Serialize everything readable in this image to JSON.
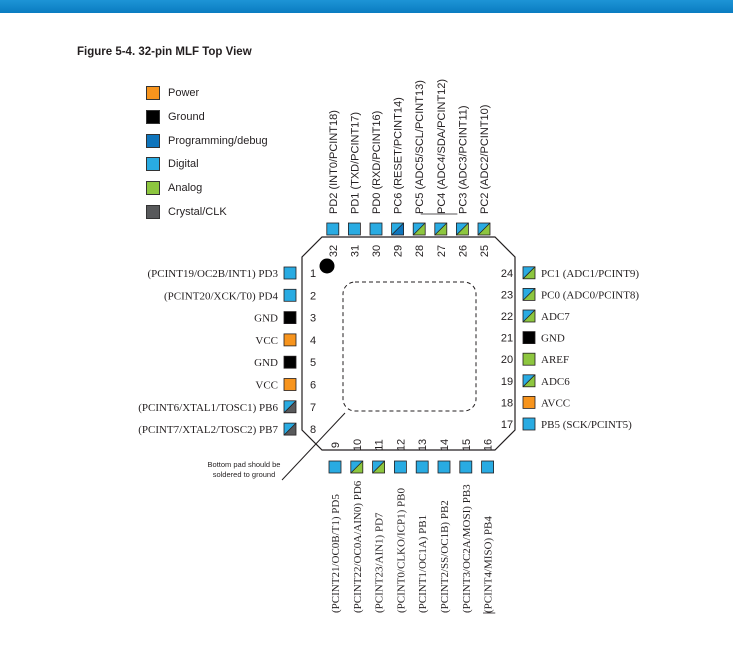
{
  "figure": {
    "title": "Figure 5-4.  32-pin MLF Top View"
  },
  "legend": [
    {
      "label": "Power",
      "color": "#f7941d"
    },
    {
      "label": "Ground",
      "color": "#000000"
    },
    {
      "label": "Programming/debug",
      "color": "#0f75bc"
    },
    {
      "label": "Digital",
      "color": "#29abe2"
    },
    {
      "label": "Analog",
      "color": "#8dc63f"
    },
    {
      "label": "Crystal/CLK",
      "color": "#58595b"
    }
  ],
  "pin_type_colors": {
    "power": "#f7941d",
    "ground": "#000000",
    "programming": "#0f75bc",
    "digital": "#29abe2",
    "analog": "#8dc63f",
    "crystal": "#58595b"
  },
  "pins": {
    "left": [
      {
        "num": "1",
        "label": "(PCINT19/OC2B/INT1) PD3",
        "type": "digital"
      },
      {
        "num": "2",
        "label": "(PCINT20/XCK/T0) PD4",
        "type": "digital"
      },
      {
        "num": "3",
        "label": "GND",
        "type": "ground"
      },
      {
        "num": "4",
        "label": "VCC",
        "type": "power"
      },
      {
        "num": "5",
        "label": "GND",
        "type": "ground"
      },
      {
        "num": "6",
        "label": "VCC",
        "type": "power"
      },
      {
        "num": "7",
        "label": "(PCINT6/XTAL1/TOSC1) PB6",
        "type": "digital",
        "type2": "crystal"
      },
      {
        "num": "8",
        "label": "(PCINT7/XTAL2/TOSC2) PB7",
        "type": "digital",
        "type2": "crystal"
      }
    ],
    "bottom": [
      {
        "num": "9",
        "label": "(PCINT21/OC0B/T1) PD5",
        "type": "digital"
      },
      {
        "num": "10",
        "label": "(PCINT22/OC0A/AIN0) PD6",
        "type": "digital",
        "type2": "analog"
      },
      {
        "num": "11",
        "label": "(PCINT23/AIN1) PD7",
        "type": "digital",
        "type2": "analog"
      },
      {
        "num": "12",
        "label": "(PCINT0/CLKO/ICP1) PB0",
        "type": "digital"
      },
      {
        "num": "13",
        "label": "(PCINT1/OC1A) PB1",
        "type": "digital"
      },
      {
        "num": "14",
        "label": "(PCINT2/SS/OC1B) PB2",
        "type": "digital"
      },
      {
        "num": "15",
        "label": "(PCINT3/OC2A/MOSI) PB3",
        "type": "digital"
      },
      {
        "num": "16",
        "label": "(PCINT4/MISO) PB4",
        "type": "digital"
      }
    ],
    "right": [
      {
        "num": "17",
        "label": "PB5 (SCK/PCINT5)",
        "type": "digital"
      },
      {
        "num": "18",
        "label": "AVCC",
        "type": "power"
      },
      {
        "num": "19",
        "label": "ADC6",
        "type": "digital",
        "type2": "analog"
      },
      {
        "num": "20",
        "label": "AREF",
        "type": "analog"
      },
      {
        "num": "21",
        "label": "GND",
        "type": "ground"
      },
      {
        "num": "22",
        "label": "ADC7",
        "type": "digital",
        "type2": "analog"
      },
      {
        "num": "23",
        "label": "PC0 (ADC0/PCINT8)",
        "type": "digital",
        "type2": "analog"
      },
      {
        "num": "24",
        "label": "PC1 (ADC1/PCINT9)",
        "type": "digital",
        "type2": "analog"
      }
    ],
    "top": [
      {
        "num": "25",
        "label": "PC2 (ADC2/PCINT10)",
        "type": "digital",
        "type2": "analog"
      },
      {
        "num": "26",
        "label": "PC3 (ADC3/PCINT11)",
        "type": "digital",
        "type2": "analog"
      },
      {
        "num": "27",
        "label": "PC4 (ADC4/SDA/PCINT12)",
        "type": "digital",
        "type2": "analog"
      },
      {
        "num": "28",
        "label": "PC5 (ADC5/SCL/PCINT13)",
        "type": "digital",
        "type2": "analog"
      },
      {
        "num": "29",
        "label": "PC6 (RESET/PCINT14)",
        "type": "digital",
        "type2": "programming"
      },
      {
        "num": "30",
        "label": "PD0 (RXD/PCINT16)",
        "type": "digital"
      },
      {
        "num": "31",
        "label": "PD1 (TXD/PCINT17)",
        "type": "digital"
      },
      {
        "num": "32",
        "label": "PD2 (INT0/PCINT18)",
        "type": "digital"
      }
    ]
  },
  "note": {
    "text": "Bottom pad should be soldered to ground"
  }
}
